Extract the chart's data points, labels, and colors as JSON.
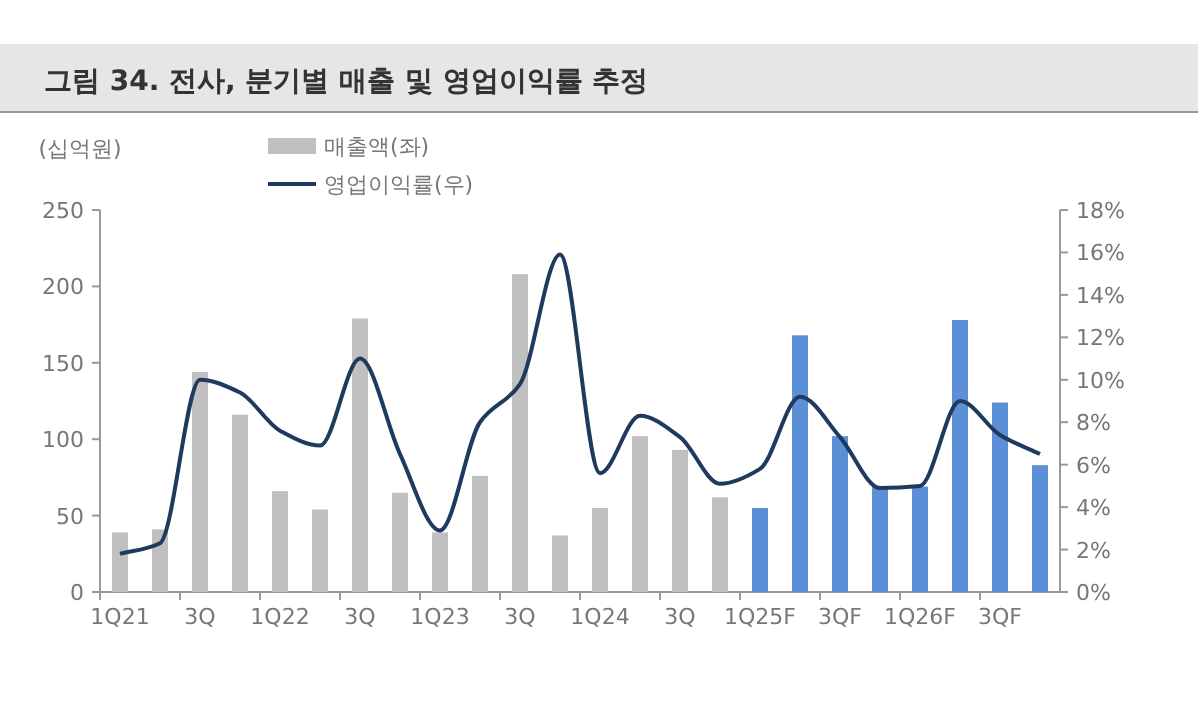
{
  "chart_data": {
    "type": "bar",
    "title": "그림 34. 전사, 분기별 매출 및 영업이익률 추정",
    "ylabel": "(십억원)",
    "categories": [
      "1Q21",
      null,
      "3Q",
      null,
      "1Q22",
      null,
      "3Q",
      null,
      "1Q23",
      null,
      "3Q",
      null,
      "1Q24",
      null,
      "3Q",
      null,
      "1Q25F",
      null,
      "3QF",
      null,
      "1Q26F",
      null,
      "3QF",
      null
    ],
    "series": [
      {
        "name": "매출액(좌)",
        "color": "#c0c0c0",
        "colors": [
          "#c0c0c0",
          "#c0c0c0",
          "#c0c0c0",
          "#c0c0c0",
          "#c0c0c0",
          "#c0c0c0",
          "#c0c0c0",
          "#c0c0c0",
          "#c0c0c0",
          "#c0c0c0",
          "#c0c0c0",
          "#c0c0c0",
          "#c0c0c0",
          "#c0c0c0",
          "#c0c0c0",
          "#c0c0c0",
          "#5b8fd6",
          "#5b8fd6",
          "#5b8fd6",
          "#5b8fd6",
          "#5b8fd6",
          "#5b8fd6",
          "#5b8fd6",
          "#5b8fd6"
        ],
        "values": [
          39,
          41,
          144,
          116,
          66,
          54,
          179,
          65,
          39,
          76,
          208,
          37,
          55,
          102,
          93,
          62,
          55,
          168,
          102,
          69,
          69,
          178,
          124,
          83
        ]
      },
      {
        "name": "영업이익률(우)",
        "type": "line",
        "axis": "y2",
        "color": "#1f3a5f",
        "values": [
          1.8,
          2.3,
          10.0,
          9.4,
          7.6,
          6.9,
          11.0,
          6.5,
          2.9,
          8.0,
          9.8,
          15.9,
          5.6,
          8.3,
          7.3,
          5.1,
          5.8,
          9.2,
          7.3,
          4.9,
          5.0,
          9.0,
          7.4,
          6.5
        ]
      }
    ],
    "ylim": [
      0,
      250
    ],
    "yticks": [
      0,
      50,
      100,
      150,
      200,
      250
    ],
    "y2lim": [
      0,
      18
    ],
    "y2ticks": [
      {
        "value": 0,
        "label": "0%"
      },
      {
        "value": 2,
        "label": "2%"
      },
      {
        "value": 4,
        "label": "4%"
      },
      {
        "value": 6,
        "label": "6%"
      },
      {
        "value": 8,
        "label": "8%"
      },
      {
        "value": 10,
        "label": "10%"
      },
      {
        "value": 12,
        "label": "12%"
      },
      {
        "value": 14,
        "label": "14%"
      },
      {
        "value": 16,
        "label": "16%"
      },
      {
        "value": 18,
        "label": "18%"
      }
    ],
    "legend": "top left",
    "grid": false
  }
}
